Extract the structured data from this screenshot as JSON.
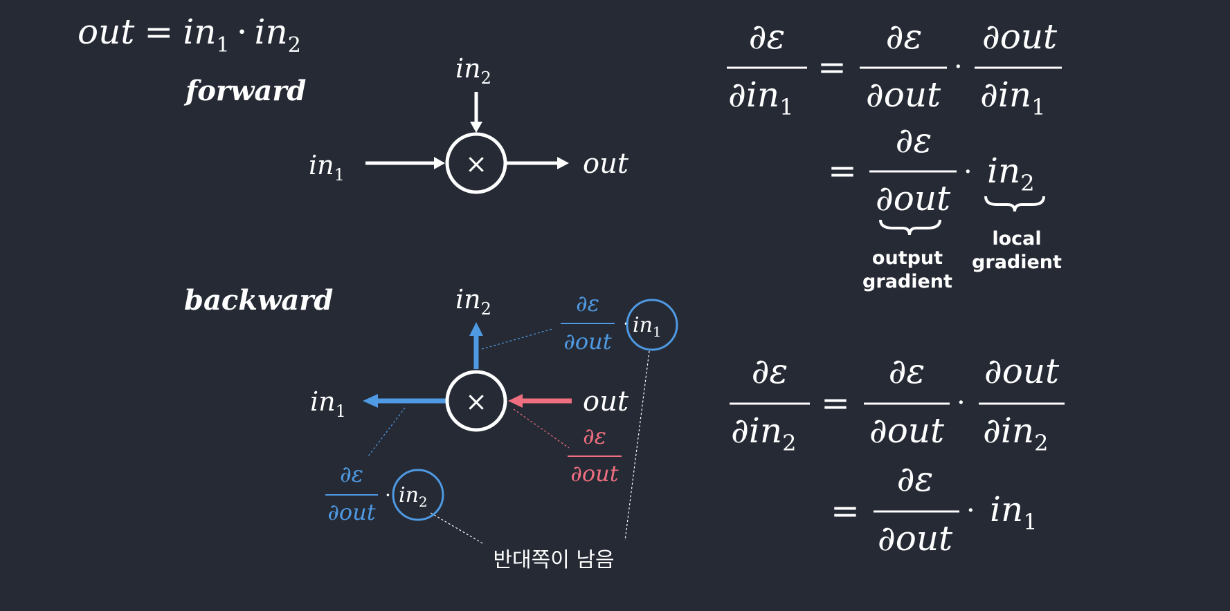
{
  "colors": {
    "background": "#252a35",
    "foreground": "#ffffff",
    "blue": "#4f9ae3",
    "pink": "#ef6f80"
  },
  "symbols": {
    "partial": "∂",
    "epsilon": "ε",
    "equals": "=",
    "dot": "·",
    "times": "×",
    "out": "out",
    "in": "in",
    "sub1": "1",
    "sub2": "2"
  },
  "forward": {
    "equation": {
      "lhs": "out",
      "var1": "in",
      "sub1": "1",
      "var2": "in",
      "sub2": "2"
    },
    "title": "forward",
    "node_symbol": "×",
    "input_left": {
      "var": "in",
      "sub": "1"
    },
    "input_top": {
      "var": "in",
      "sub": "2"
    },
    "output": "out"
  },
  "backward": {
    "title": "backward",
    "node_symbol": "×",
    "input_left": {
      "var": "in",
      "sub": "1"
    },
    "input_top": {
      "var": "in",
      "sub": "2"
    },
    "output": "out",
    "grad_top_num": "∂ε",
    "grad_top_den": "∂out",
    "grad_top_var": {
      "var": "in",
      "sub": "1"
    },
    "grad_left_num": "∂ε",
    "grad_left_den": "∂out",
    "grad_left_var": {
      "var": "in",
      "sub": "2"
    },
    "grad_in_num": "∂ε",
    "grad_in_den": "∂out",
    "note": "반대쪽이 남음"
  },
  "equation1": {
    "lhs_num": "∂ε",
    "lhs_den_var": "∂in",
    "lhs_den_sub": "1",
    "r1_num": "∂ε",
    "r1_den": "∂out",
    "r2_num": "∂out",
    "r2_den_var": "∂in",
    "r2_den_sub": "1",
    "line2_num": "∂ε",
    "line2_den": "∂out",
    "line2_var": "in",
    "line2_sub": "2",
    "brace_left_label": [
      "output",
      "gradient"
    ],
    "brace_right_label": [
      "local",
      "gradient"
    ]
  },
  "equation2": {
    "lhs_num": "∂ε",
    "lhs_den_var": "∂in",
    "lhs_den_sub": "2",
    "r1_num": "∂ε",
    "r1_den": "∂out",
    "r2_num": "∂out",
    "r2_den_var": "∂in",
    "r2_den_sub": "2",
    "line2_num": "∂ε",
    "line2_den": "∂out",
    "line2_var": "in",
    "line2_sub": "1"
  }
}
